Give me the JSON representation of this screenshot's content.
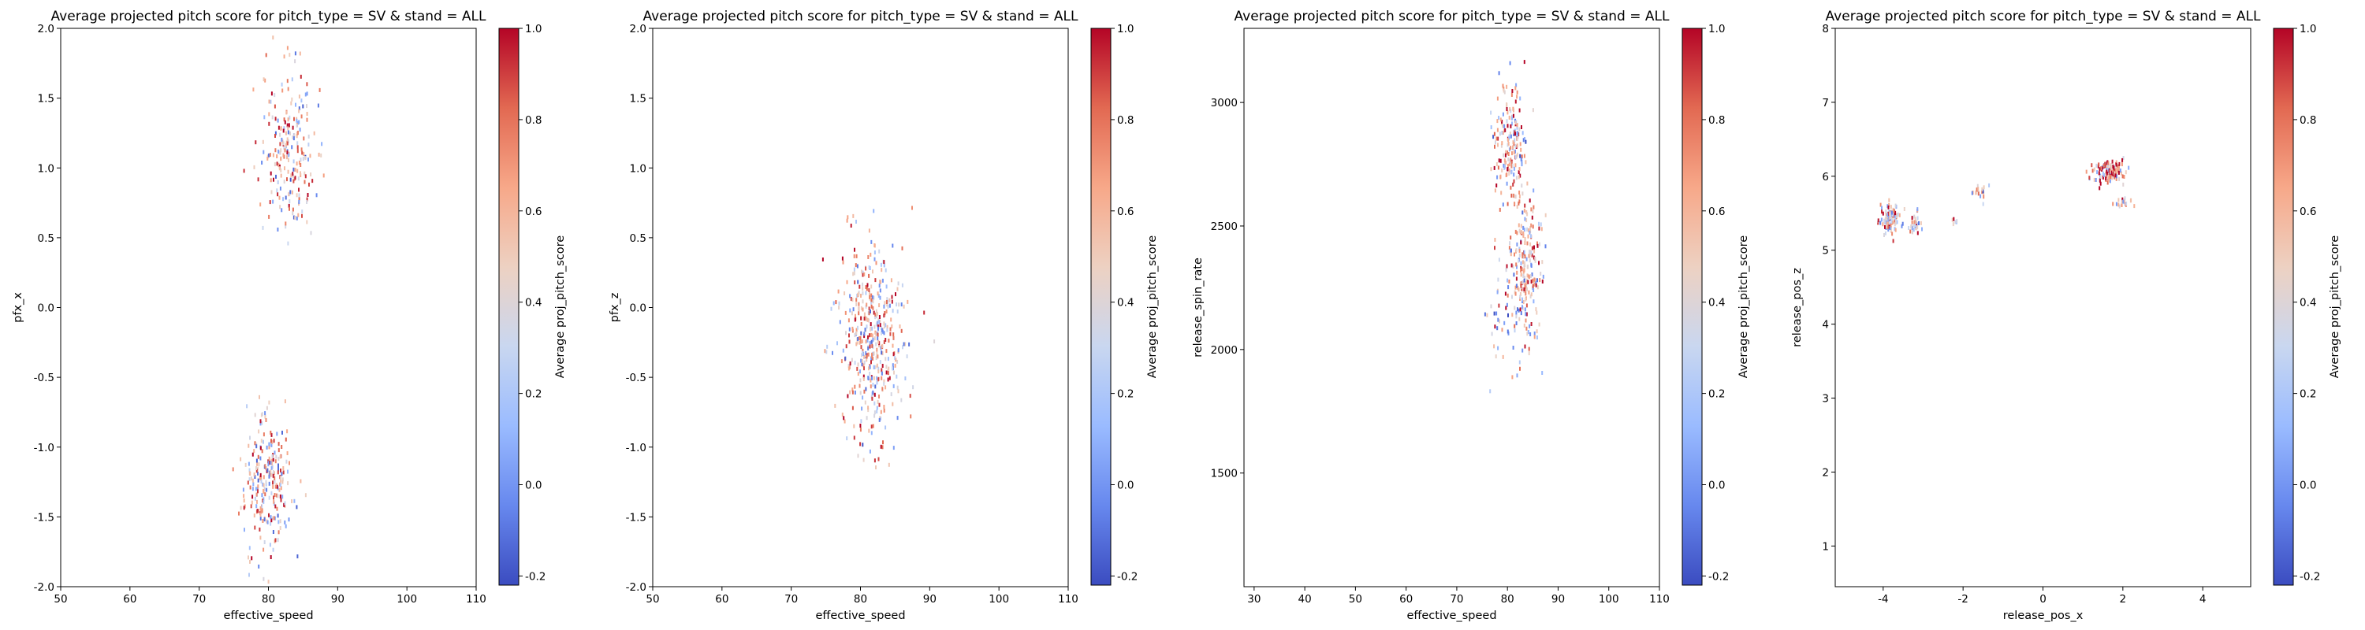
{
  "colormap": {
    "name": "coolwarm",
    "stops": [
      "#3b4cc0",
      "#6788ee",
      "#9abbff",
      "#c9d7f0",
      "#edd1c2",
      "#f7a889",
      "#e26952",
      "#b40426"
    ]
  },
  "chart_data": [
    {
      "type": "scatter",
      "title": "Average projected pitch score for pitch_type = SV & stand = ALL",
      "xlabel": "effective_speed",
      "ylabel": "pfx_x",
      "xlim": [
        50,
        110
      ],
      "ylim": [
        -2.0,
        2.0
      ],
      "xticks": [
        "50",
        "60",
        "70",
        "80",
        "90",
        "100",
        "110"
      ],
      "yticks": [
        "-2.0",
        "-1.5",
        "-1.0",
        "-0.5",
        "0.0",
        "0.5",
        "1.0",
        "1.5",
        "2.0"
      ],
      "colorbar": {
        "label": "Average proj_pitch_score",
        "range": [
          -0.22,
          1.0
        ],
        "ticks": [
          "-0.2",
          "0.0",
          "0.2",
          "0.4",
          "0.6",
          "0.8",
          "1.0"
        ]
      },
      "grid": false,
      "clusters": [
        {
          "x": 83,
          "y": 1.15,
          "sx": 1.8,
          "sy": 0.28,
          "n": 230,
          "score": 0.58
        },
        {
          "x": 80,
          "y": -1.25,
          "sx": 1.7,
          "sy": 0.26,
          "n": 250,
          "score": 0.58
        }
      ]
    },
    {
      "type": "scatter",
      "title": "Average projected pitch score for pitch_type = SV & stand = ALL",
      "xlabel": "effective_speed",
      "ylabel": "pfx_z",
      "xlim": [
        50,
        110
      ],
      "ylim": [
        -2.0,
        2.0
      ],
      "xticks": [
        "50",
        "60",
        "70",
        "80",
        "90",
        "100",
        "110"
      ],
      "yticks": [
        "-2.0",
        "-1.5",
        "-1.0",
        "-0.5",
        "0.0",
        "0.5",
        "1.0",
        "1.5",
        "2.0"
      ],
      "colorbar": {
        "label": "Average proj_pitch_score",
        "range": [
          -0.22,
          1.0
        ],
        "ticks": [
          "-0.2",
          "0.0",
          "0.2",
          "0.4",
          "0.6",
          "0.8",
          "1.0"
        ]
      },
      "grid": false,
      "clusters": [
        {
          "x": 81.5,
          "y": -0.2,
          "sx": 2.4,
          "sy": 0.38,
          "n": 460,
          "score": 0.58
        }
      ]
    },
    {
      "type": "scatter",
      "title": "Average projected pitch score for pitch_type = SV & stand = ALL",
      "xlabel": "effective_speed",
      "ylabel": "release_spin_rate",
      "xlim": [
        28,
        110
      ],
      "ylim": [
        1040,
        3300
      ],
      "xticks": [
        "30",
        "40",
        "50",
        "60",
        "70",
        "80",
        "90",
        "100",
        "110"
      ],
      "yticks": [
        "1500",
        "2000",
        "2500",
        "3000"
      ],
      "colorbar": {
        "label": "Average proj_pitch_score",
        "range": [
          -0.22,
          1.0
        ],
        "ticks": [
          "-0.2",
          "0.0",
          "0.2",
          "0.4",
          "0.6",
          "0.8",
          "1.0"
        ]
      },
      "grid": false,
      "clusters": [
        {
          "x": 80.5,
          "y": 2830,
          "sx": 1.6,
          "sy": 120,
          "n": 190,
          "score": 0.62
        },
        {
          "x": 83.5,
          "y": 2330,
          "sx": 1.7,
          "sy": 150,
          "n": 230,
          "score": 0.6
        },
        {
          "x": 79.5,
          "y": 2100,
          "sx": 1.8,
          "sy": 120,
          "n": 40,
          "score": 0.42
        }
      ]
    },
    {
      "type": "scatter",
      "title": "Average projected pitch score for pitch_type = SV & stand = ALL",
      "xlabel": "release_pos_x",
      "ylabel": "release_pos_z",
      "xlim": [
        -5.2,
        5.2
      ],
      "ylim": [
        0.45,
        8.0
      ],
      "xticks": [
        "-4",
        "-2",
        "0",
        "2",
        "4"
      ],
      "yticks": [
        "1",
        "2",
        "3",
        "4",
        "5",
        "6",
        "7",
        "8"
      ],
      "colorbar": {
        "label": "Average proj_pitch_score",
        "range": [
          -0.22,
          1.0
        ],
        "ticks": [
          "-0.2",
          "0.0",
          "0.2",
          "0.4",
          "0.6",
          "0.8",
          "1.0"
        ]
      },
      "grid": false,
      "clusters": [
        {
          "x": -3.8,
          "y": 5.42,
          "sx": 0.13,
          "sy": 0.11,
          "n": 110,
          "score": 0.55
        },
        {
          "x": -3.2,
          "y": 5.35,
          "sx": 0.07,
          "sy": 0.09,
          "n": 35,
          "score": 0.5
        },
        {
          "x": -2.2,
          "y": 5.4,
          "sx": 0.04,
          "sy": 0.03,
          "n": 6,
          "score": 0.5
        },
        {
          "x": -1.6,
          "y": 5.78,
          "sx": 0.12,
          "sy": 0.05,
          "n": 20,
          "score": 0.55
        },
        {
          "x": 1.65,
          "y": 6.05,
          "sx": 0.2,
          "sy": 0.07,
          "n": 130,
          "score": 0.7
        },
        {
          "x": 2.05,
          "y": 5.65,
          "sx": 0.13,
          "sy": 0.04,
          "n": 18,
          "score": 0.55
        }
      ]
    }
  ]
}
